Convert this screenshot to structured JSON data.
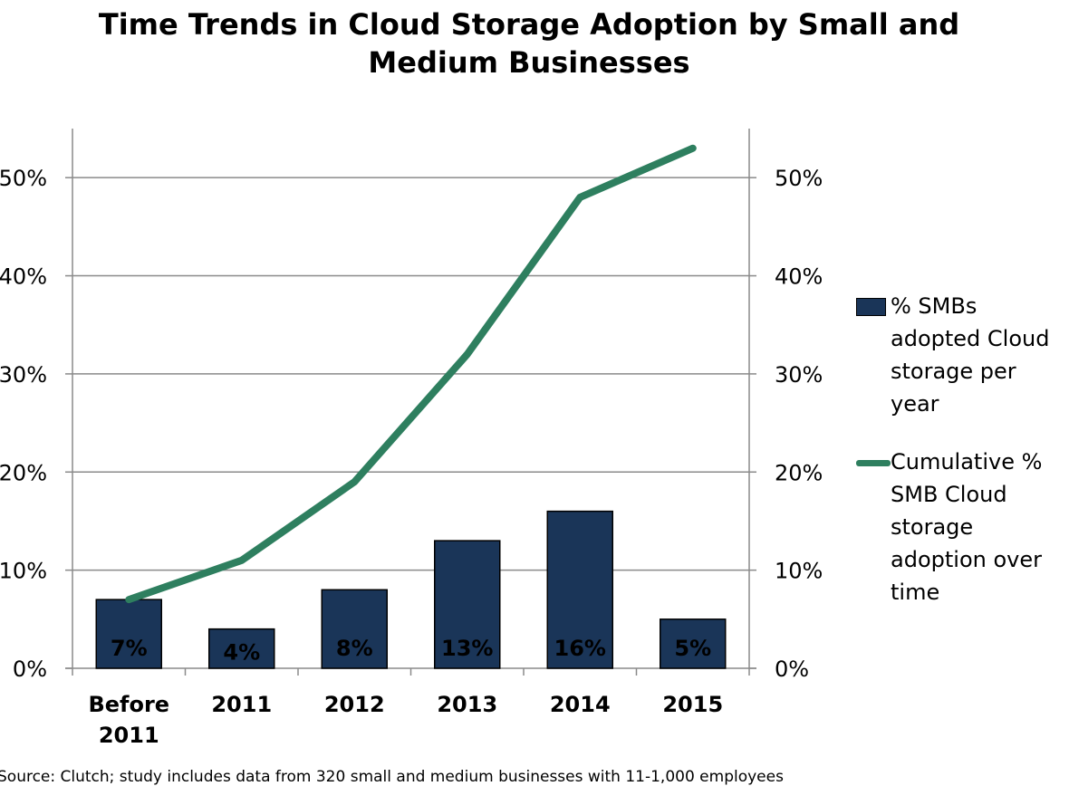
{
  "chart_data": {
    "type": "bar",
    "title": [
      "Time Trends in Cloud Storage Adoption by Small and",
      "Medium Businesses"
    ],
    "categories": [
      [
        "Before",
        "2011"
      ],
      [
        "2011"
      ],
      [
        "2012"
      ],
      [
        "2013"
      ],
      [
        "2014"
      ],
      [
        "2015"
      ]
    ],
    "series": [
      {
        "name": "% SMBs adopted Cloud storage per year",
        "type": "bar",
        "color": "#1a3558",
        "values": [
          7,
          4,
          8,
          13,
          16,
          5
        ],
        "data_labels": [
          "7%",
          "4%",
          "8%",
          "13%",
          "16%",
          "5%"
        ]
      },
      {
        "name": "Cumulative % SMB Cloud storage adoption over time",
        "type": "line",
        "color": "#2e7f5f",
        "values": [
          7,
          11,
          19,
          32,
          48,
          53
        ]
      }
    ],
    "ylim": [
      0,
      55
    ],
    "yticks": [
      0,
      10,
      20,
      30,
      40,
      50
    ],
    "ytick_labels": [
      "0%",
      "10%",
      "20%",
      "30%",
      "40%",
      "50%"
    ],
    "secondary_y": true,
    "grid": true,
    "legend_position": "right"
  },
  "legend": [
    {
      "lines": [
        "% SMBs",
        "adopted Cloud",
        "storage per",
        "year"
      ]
    },
    {
      "lines": [
        "Cumulative %",
        "SMB Cloud",
        "storage",
        "adoption over",
        "time"
      ]
    }
  ],
  "source": "Source: Clutch; study includes data from 320 small and medium businesses with 11-1,000 employees"
}
